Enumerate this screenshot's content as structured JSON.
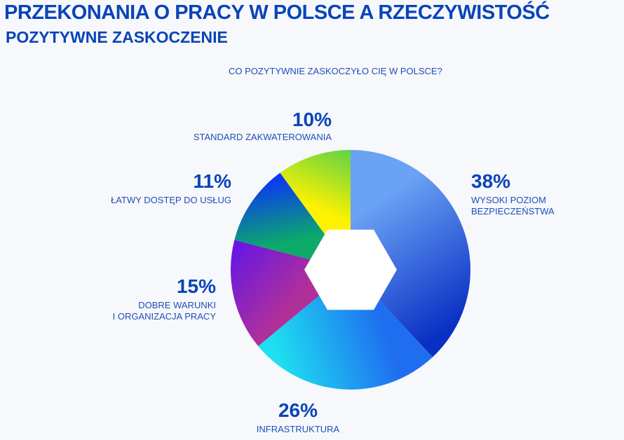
{
  "header": {
    "title": "PRZEKONANIA O PRACY W POLSCE A RZECZYWISTOŚĆ",
    "subtitle": "POZYTYWNE ZASKOCZENIE"
  },
  "chart_data": {
    "type": "pie",
    "title": "CO POZYTYWNIE ZASKOCZYŁO CIĘ W POLSCE?",
    "unit": "%",
    "slices": [
      {
        "label": "WYSOKI POZIOM BEZPIECZEŃSTWA",
        "lines": [
          "WYSOKI POZIOM",
          "BEZPIECZEŃSTWA"
        ],
        "value": 38,
        "display": "38%",
        "colors": [
          "#6aa2f4",
          "#0a2fc4"
        ]
      },
      {
        "label": "INFRASTRUKTURA",
        "lines": [
          "INFRASTRUKTURA"
        ],
        "value": 26,
        "display": "26%",
        "colors": [
          "#1f6ef0",
          "#1ee0f0"
        ]
      },
      {
        "label": "DOBRE WARUNKI I ORGANIZACJA PRACY",
        "lines": [
          "DOBRE WARUNKI",
          "I ORGANIZACJA PRACY"
        ],
        "value": 15,
        "display": "15%",
        "colors": [
          "#b0309a",
          "#6a18e0"
        ]
      },
      {
        "label": "ŁATWY DOSTĘP DO USŁUG",
        "lines": [
          "ŁATWY DOSTĘP DO USŁUG"
        ],
        "value": 11,
        "display": "11%",
        "colors": [
          "#0cab6a",
          "#0b3af0"
        ]
      },
      {
        "label": "STANDARD ZAKWATEROWANIA",
        "lines": [
          "STANDARD ZAKWATEROWANIA"
        ],
        "value": 10,
        "display": "10%",
        "colors": [
          "#fff200",
          "#6ad540"
        ]
      }
    ],
    "center_shape": "hexagon",
    "center_color": "#ffffff"
  }
}
